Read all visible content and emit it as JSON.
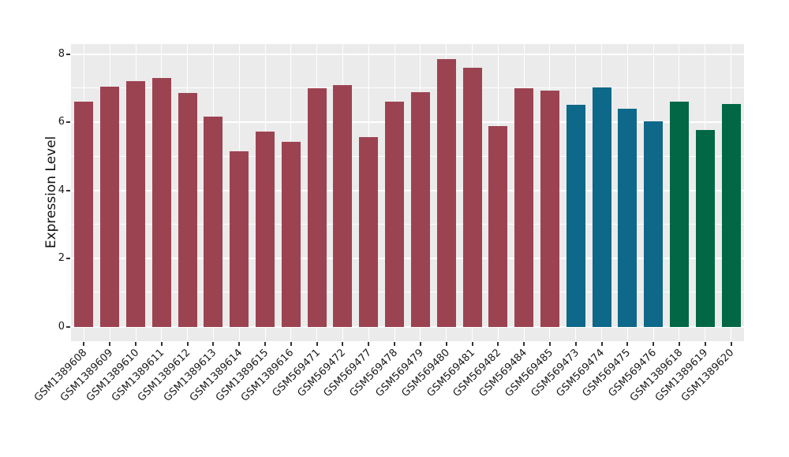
{
  "chart_data": {
    "type": "bar",
    "title": "",
    "xlabel": "",
    "ylabel": "Expression Level",
    "ylim": [
      0,
      8.3
    ],
    "yticks": [
      0,
      2,
      4,
      6,
      8
    ],
    "yticks_minor": [
      1,
      3,
      5,
      7
    ],
    "legend": "none",
    "grid": "white major and minor gridlines on gray panel",
    "panel_background": "#EBEBEB",
    "grid_color": "#FFFFFF",
    "axis_text_color": "#1A1A1A",
    "group_colors": {
      "maroon": "#9C4351",
      "teal": "#0D6889",
      "green": "#016745"
    },
    "categories": [
      "GSM1389608",
      "GSM1389609",
      "GSM1389610",
      "GSM1389611",
      "GSM1389612",
      "GSM1389613",
      "GSM1389614",
      "GSM1389615",
      "GSM1389616",
      "GSM569471",
      "GSM569472",
      "GSM569477",
      "GSM569478",
      "GSM569479",
      "GSM569480",
      "GSM569481",
      "GSM569482",
      "GSM569484",
      "GSM569485",
      "GSM569473",
      "GSM569474",
      "GSM569475",
      "GSM569476",
      "GSM1389618",
      "GSM1389619",
      "GSM1389620"
    ],
    "bars": [
      {
        "label": "GSM1389608",
        "value": 6.6,
        "group": "maroon"
      },
      {
        "label": "GSM1389609",
        "value": 7.05,
        "group": "maroon"
      },
      {
        "label": "GSM1389610",
        "value": 7.22,
        "group": "maroon"
      },
      {
        "label": "GSM1389611",
        "value": 7.31,
        "group": "maroon"
      },
      {
        "label": "GSM1389612",
        "value": 6.86,
        "group": "maroon"
      },
      {
        "label": "GSM1389613",
        "value": 6.18,
        "group": "maroon"
      },
      {
        "label": "GSM1389614",
        "value": 5.15,
        "group": "maroon"
      },
      {
        "label": "GSM1389615",
        "value": 5.73,
        "group": "maroon"
      },
      {
        "label": "GSM1389616",
        "value": 5.42,
        "group": "maroon"
      },
      {
        "label": "GSM569471",
        "value": 7.01,
        "group": "maroon"
      },
      {
        "label": "GSM569472",
        "value": 7.1,
        "group": "maroon"
      },
      {
        "label": "GSM569477",
        "value": 5.57,
        "group": "maroon"
      },
      {
        "label": "GSM569478",
        "value": 6.62,
        "group": "maroon"
      },
      {
        "label": "GSM569479",
        "value": 6.89,
        "group": "maroon"
      },
      {
        "label": "GSM569480",
        "value": 7.87,
        "group": "maroon"
      },
      {
        "label": "GSM569481",
        "value": 7.61,
        "group": "maroon"
      },
      {
        "label": "GSM569482",
        "value": 5.9,
        "group": "maroon"
      },
      {
        "label": "GSM569484",
        "value": 7.01,
        "group": "maroon"
      },
      {
        "label": "GSM569485",
        "value": 6.93,
        "group": "maroon"
      },
      {
        "label": "GSM569473",
        "value": 6.52,
        "group": "teal"
      },
      {
        "label": "GSM569474",
        "value": 7.03,
        "group": "teal"
      },
      {
        "label": "GSM569475",
        "value": 6.4,
        "group": "teal"
      },
      {
        "label": "GSM569476",
        "value": 6.02,
        "group": "teal"
      },
      {
        "label": "GSM1389618",
        "value": 6.61,
        "group": "green"
      },
      {
        "label": "GSM1389619",
        "value": 5.78,
        "group": "green"
      },
      {
        "label": "GSM1389620",
        "value": 6.53,
        "group": "green"
      }
    ]
  }
}
